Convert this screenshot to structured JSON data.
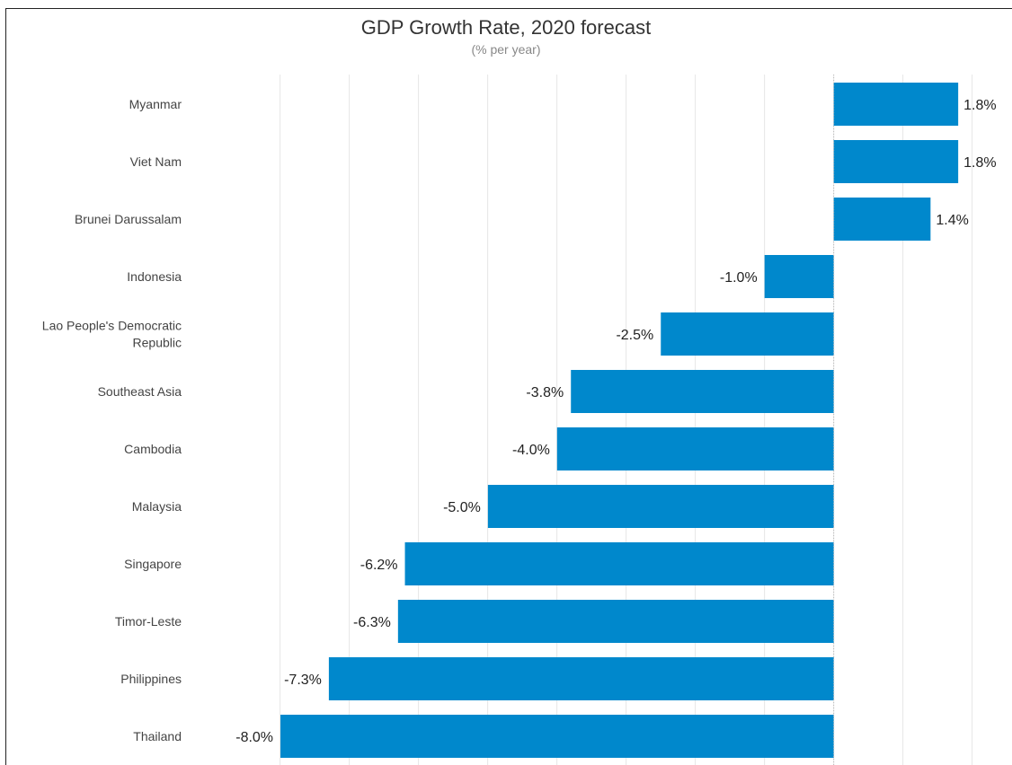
{
  "chart_data": {
    "type": "bar",
    "orientation": "horizontal",
    "title": "GDP Growth Rate, 2020 forecast",
    "subtitle": "(% per year)",
    "categories": [
      "Myanmar",
      "Viet Nam",
      "Brunei Darussalam",
      "Indonesia",
      "Lao People's Democratic Republic",
      "Southeast Asia",
      "Cambodia",
      "Malaysia",
      "Singapore",
      "Timor-Leste",
      "Philippines",
      "Thailand"
    ],
    "category_lines": [
      [
        "Myanmar"
      ],
      [
        "Viet Nam"
      ],
      [
        "Brunei Darussalam"
      ],
      [
        "Indonesia"
      ],
      [
        "Lao People's Democratic",
        "Republic"
      ],
      [
        "Southeast Asia"
      ],
      [
        "Cambodia"
      ],
      [
        "Malaysia"
      ],
      [
        "Singapore"
      ],
      [
        "Timor-Leste"
      ],
      [
        "Philippines"
      ],
      [
        "Thailand"
      ]
    ],
    "values": [
      1.8,
      1.8,
      1.4,
      -1.0,
      -2.5,
      -3.8,
      -4.0,
      -5.0,
      -6.2,
      -6.3,
      -7.3,
      -8.0
    ],
    "data_labels": [
      "1.8%",
      "1.8%",
      "1.4%",
      "-1.0%",
      "-2.5%",
      "-3.8%",
      "-4.0%",
      "-5.0%",
      "-6.2%",
      "-6.3%",
      "-7.3%",
      "-8.0%"
    ],
    "xlim": [
      -9.3,
      2.5
    ],
    "grid": true,
    "bar_color": "#0088cc"
  }
}
